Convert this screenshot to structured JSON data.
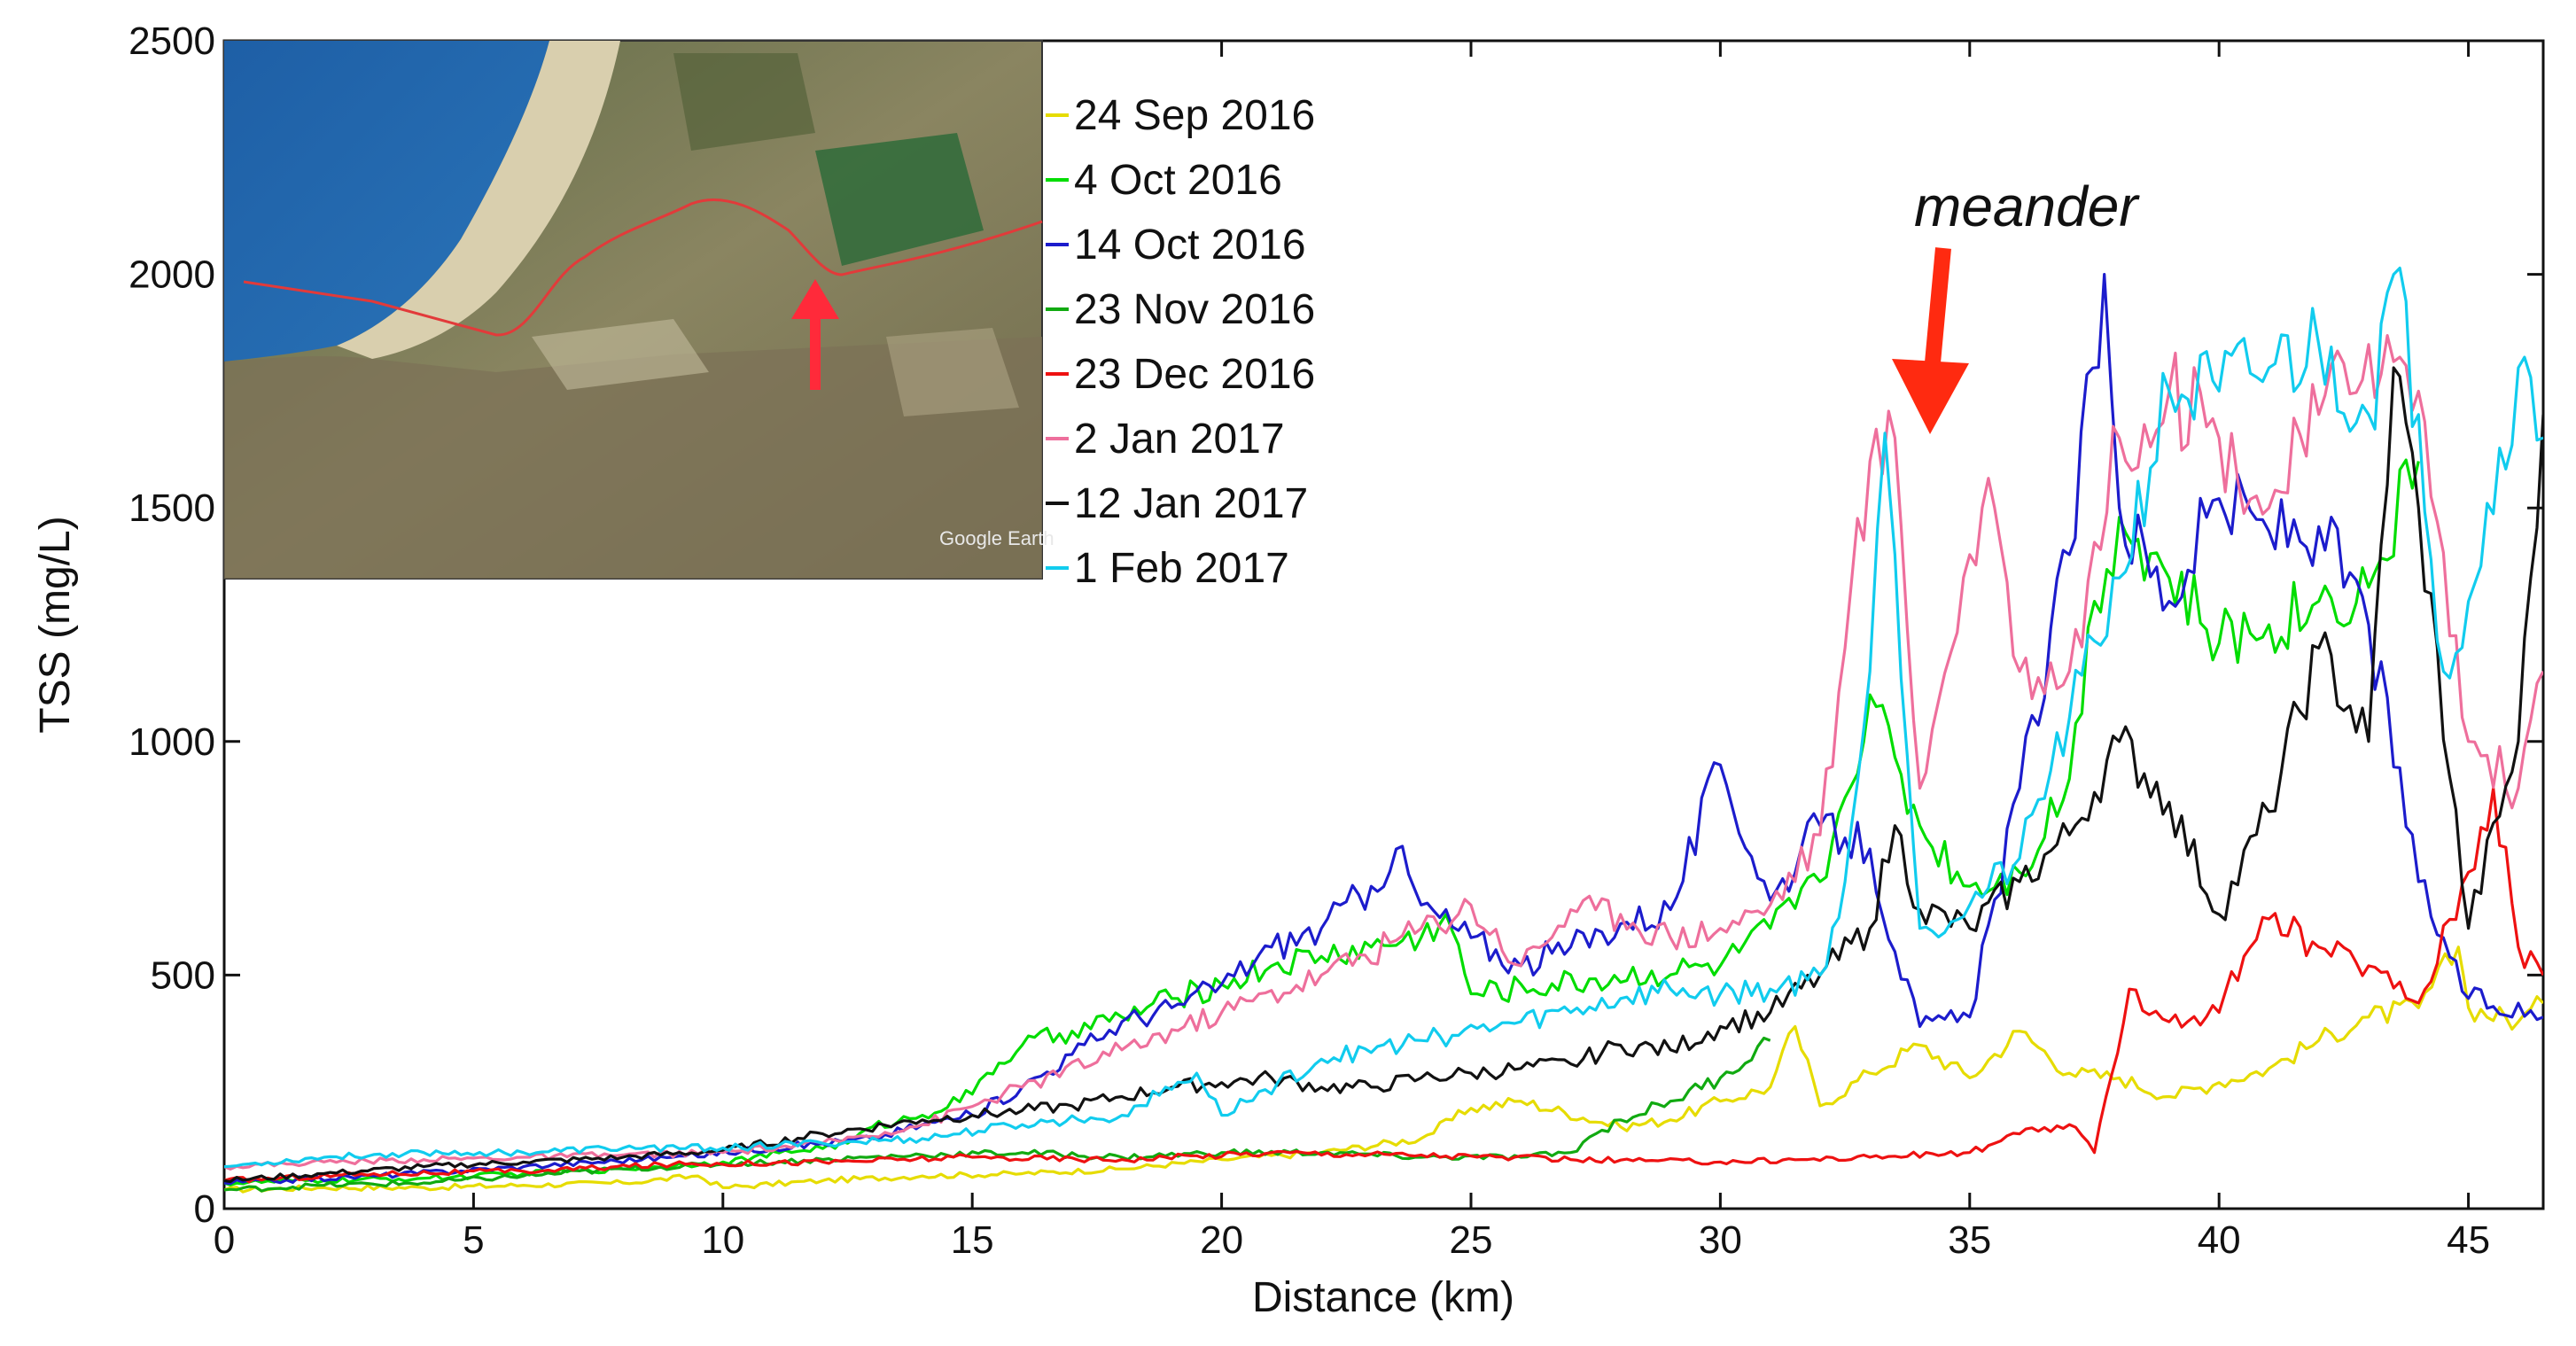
{
  "chart_data": {
    "type": "line",
    "title": "",
    "xlabel": "Distance (km)",
    "ylabel": "TSS (mg/L)",
    "xlim": [
      0,
      46.5
    ],
    "ylim": [
      0,
      2500
    ],
    "xticks": [
      0,
      5,
      10,
      15,
      20,
      25,
      30,
      35,
      40,
      45
    ],
    "yticks": [
      0,
      500,
      1000,
      1500,
      2000,
      2500
    ],
    "grid": false,
    "legend_position": "top-left (right of inset map)",
    "annotation": {
      "text": "meander",
      "x_km": 34,
      "y": 1700
    },
    "inset": {
      "description": "satellite map",
      "credit": "Google Earth"
    },
    "series": [
      {
        "name": "24 Sep 2016",
        "color": "#e6dc00",
        "x": [
          0,
          2,
          4,
          6,
          8,
          9.5,
          10,
          12,
          14,
          16,
          18,
          20,
          22,
          24,
          25,
          26,
          28,
          29,
          30,
          31,
          31.5,
          32,
          33,
          34,
          35,
          36,
          37,
          38,
          39,
          40,
          41,
          42,
          43,
          44,
          44.8,
          45,
          46,
          46.5
        ],
        "y": [
          40,
          45,
          45,
          50,
          55,
          70,
          45,
          60,
          70,
          75,
          85,
          105,
          120,
          150,
          215,
          230,
          175,
          190,
          230,
          260,
          390,
          220,
          290,
          350,
          280,
          380,
          290,
          280,
          240,
          270,
          300,
          360,
          410,
          430,
          560,
          430,
          400,
          440
        ]
      },
      {
        "name": "4 Oct 2016",
        "color": "#00dd00",
        "x": [
          0,
          2,
          4,
          6,
          8,
          10,
          12.5,
          13,
          14,
          15,
          15.3,
          16,
          17,
          18,
          19,
          20,
          21,
          22,
          23,
          24,
          24.5,
          25,
          30,
          31,
          32,
          32.5,
          33,
          34,
          35,
          36,
          37,
          37.5,
          38,
          39,
          40,
          41,
          42,
          43,
          44
        ],
        "y": [
          55,
          60,
          65,
          75,
          85,
          100,
          140,
          175,
          200,
          245,
          290,
          350,
          380,
          410,
          450,
          480,
          520,
          540,
          560,
          580,
          630,
          460,
          520,
          600,
          700,
          880,
          1100,
          820,
          690,
          720,
          920,
          1300,
          1480,
          1350,
          1210,
          1250,
          1300,
          1330,
          1600
        ]
      },
      {
        "name": "14 Oct 2016",
        "color": "#1c1ccc",
        "x": [
          0,
          3,
          6,
          9,
          11,
          13,
          14,
          15,
          16,
          17,
          18,
          19,
          20,
          21,
          22,
          23,
          23.5,
          24,
          25,
          26,
          27,
          28,
          29,
          30,
          31,
          32,
          33,
          33.5,
          34,
          35,
          36,
          37,
          37.7,
          38,
          39,
          40,
          41,
          42,
          43,
          44,
          45,
          46.5
        ],
        "y": [
          55,
          70,
          90,
          110,
          130,
          150,
          180,
          200,
          260,
          330,
          400,
          430,
          480,
          560,
          600,
          690,
          770,
          650,
          580,
          520,
          560,
          610,
          640,
          950,
          660,
          820,
          770,
          550,
          390,
          410,
          900,
          1400,
          2000,
          1500,
          1300,
          1520,
          1450,
          1460,
          1250,
          700,
          450,
          410
        ]
      },
      {
        "name": "23 Nov 2016",
        "color": "#11aa11",
        "x": [
          0,
          2,
          4,
          6,
          8,
          10,
          12,
          14,
          16,
          18,
          20,
          22,
          24,
          26,
          27,
          27.5,
          28,
          29,
          30,
          31
        ],
        "y": [
          40,
          50,
          55,
          70,
          85,
          95,
          105,
          115,
          120,
          110,
          120,
          120,
          110,
          110,
          120,
          160,
          190,
          230,
          280,
          360
        ]
      },
      {
        "name": "23 Dec 2016",
        "color": "#ee1111",
        "x": [
          0,
          3,
          6,
          9,
          12,
          15,
          18,
          21,
          24,
          27,
          30,
          33,
          35,
          36,
          37,
          37.5,
          38.2,
          39,
          40,
          40.5,
          41,
          42,
          43,
          44,
          45,
          45.5,
          46,
          46.5
        ],
        "y": [
          60,
          75,
          80,
          95,
          100,
          110,
          105,
          120,
          115,
          105,
          100,
          110,
          120,
          160,
          180,
          120,
          470,
          400,
          420,
          540,
          620,
          560,
          520,
          440,
          720,
          900,
          560,
          500
        ]
      },
      {
        "name": "2 Jan 2017",
        "color": "#ee6f9c",
        "x": [
          0,
          2,
          4,
          6,
          8,
          10,
          12,
          14,
          16,
          18,
          20,
          22,
          24,
          25,
          26,
          27,
          28,
          29,
          30,
          31,
          32,
          32.5,
          33,
          33.5,
          34,
          35,
          35.5,
          36,
          37,
          38,
          39,
          40,
          41,
          42,
          43,
          44,
          45,
          46,
          46.5
        ],
        "y": [
          90,
          100,
          105,
          110,
          115,
          120,
          140,
          180,
          260,
          340,
          420,
          500,
          600,
          650,
          520,
          640,
          630,
          580,
          600,
          650,
          800,
          1200,
          1600,
          1650,
          900,
          1400,
          1500,
          1150,
          1150,
          1650,
          1750,
          1650,
          1500,
          1700,
          1850,
          1750,
          1000,
          900,
          1150
        ]
      },
      {
        "name": "12 Jan 2017",
        "color": "#111111",
        "x": [
          0,
          2,
          4,
          6,
          8,
          10,
          12,
          14,
          15,
          16,
          17,
          18,
          19,
          20,
          21,
          22,
          23,
          24,
          25,
          26,
          27,
          28,
          29,
          30,
          31,
          32,
          33,
          33.5,
          34,
          35,
          36,
          37,
          38,
          39,
          40,
          41,
          42,
          43,
          43.5,
          44,
          45,
          46,
          46.5
        ],
        "y": [
          60,
          75,
          90,
          100,
          110,
          125,
          160,
          190,
          200,
          210,
          220,
          240,
          260,
          270,
          280,
          260,
          260,
          280,
          290,
          300,
          310,
          350,
          340,
          390,
          420,
          500,
          600,
          820,
          640,
          600,
          700,
          800,
          1000,
          870,
          630,
          850,
          1200,
          1000,
          1800,
          1500,
          600,
          1000,
          1700
        ]
      },
      {
        "name": "1 Feb 2017",
        "color": "#11ccee",
        "x": [
          0,
          2,
          4,
          6,
          8,
          10,
          12,
          14,
          16,
          18,
          19.5,
          20,
          22,
          24,
          26,
          28,
          29,
          30,
          31,
          32,
          32.5,
          33,
          33.3,
          33.5,
          34,
          35,
          36,
          37,
          38,
          39,
          40,
          41,
          42,
          43,
          43.5,
          44,
          44.5,
          45,
          46,
          46.5
        ],
        "y": [
          90,
          110,
          120,
          120,
          130,
          130,
          140,
          150,
          180,
          200,
          290,
          200,
          320,
          360,
          400,
          450,
          470,
          460,
          470,
          500,
          700,
          1150,
          1660,
          1400,
          600,
          650,
          750,
          1050,
          1350,
          1750,
          1750,
          1800,
          1850,
          1700,
          2000,
          1700,
          1150,
          1300,
          1800,
          1650
        ]
      }
    ]
  }
}
